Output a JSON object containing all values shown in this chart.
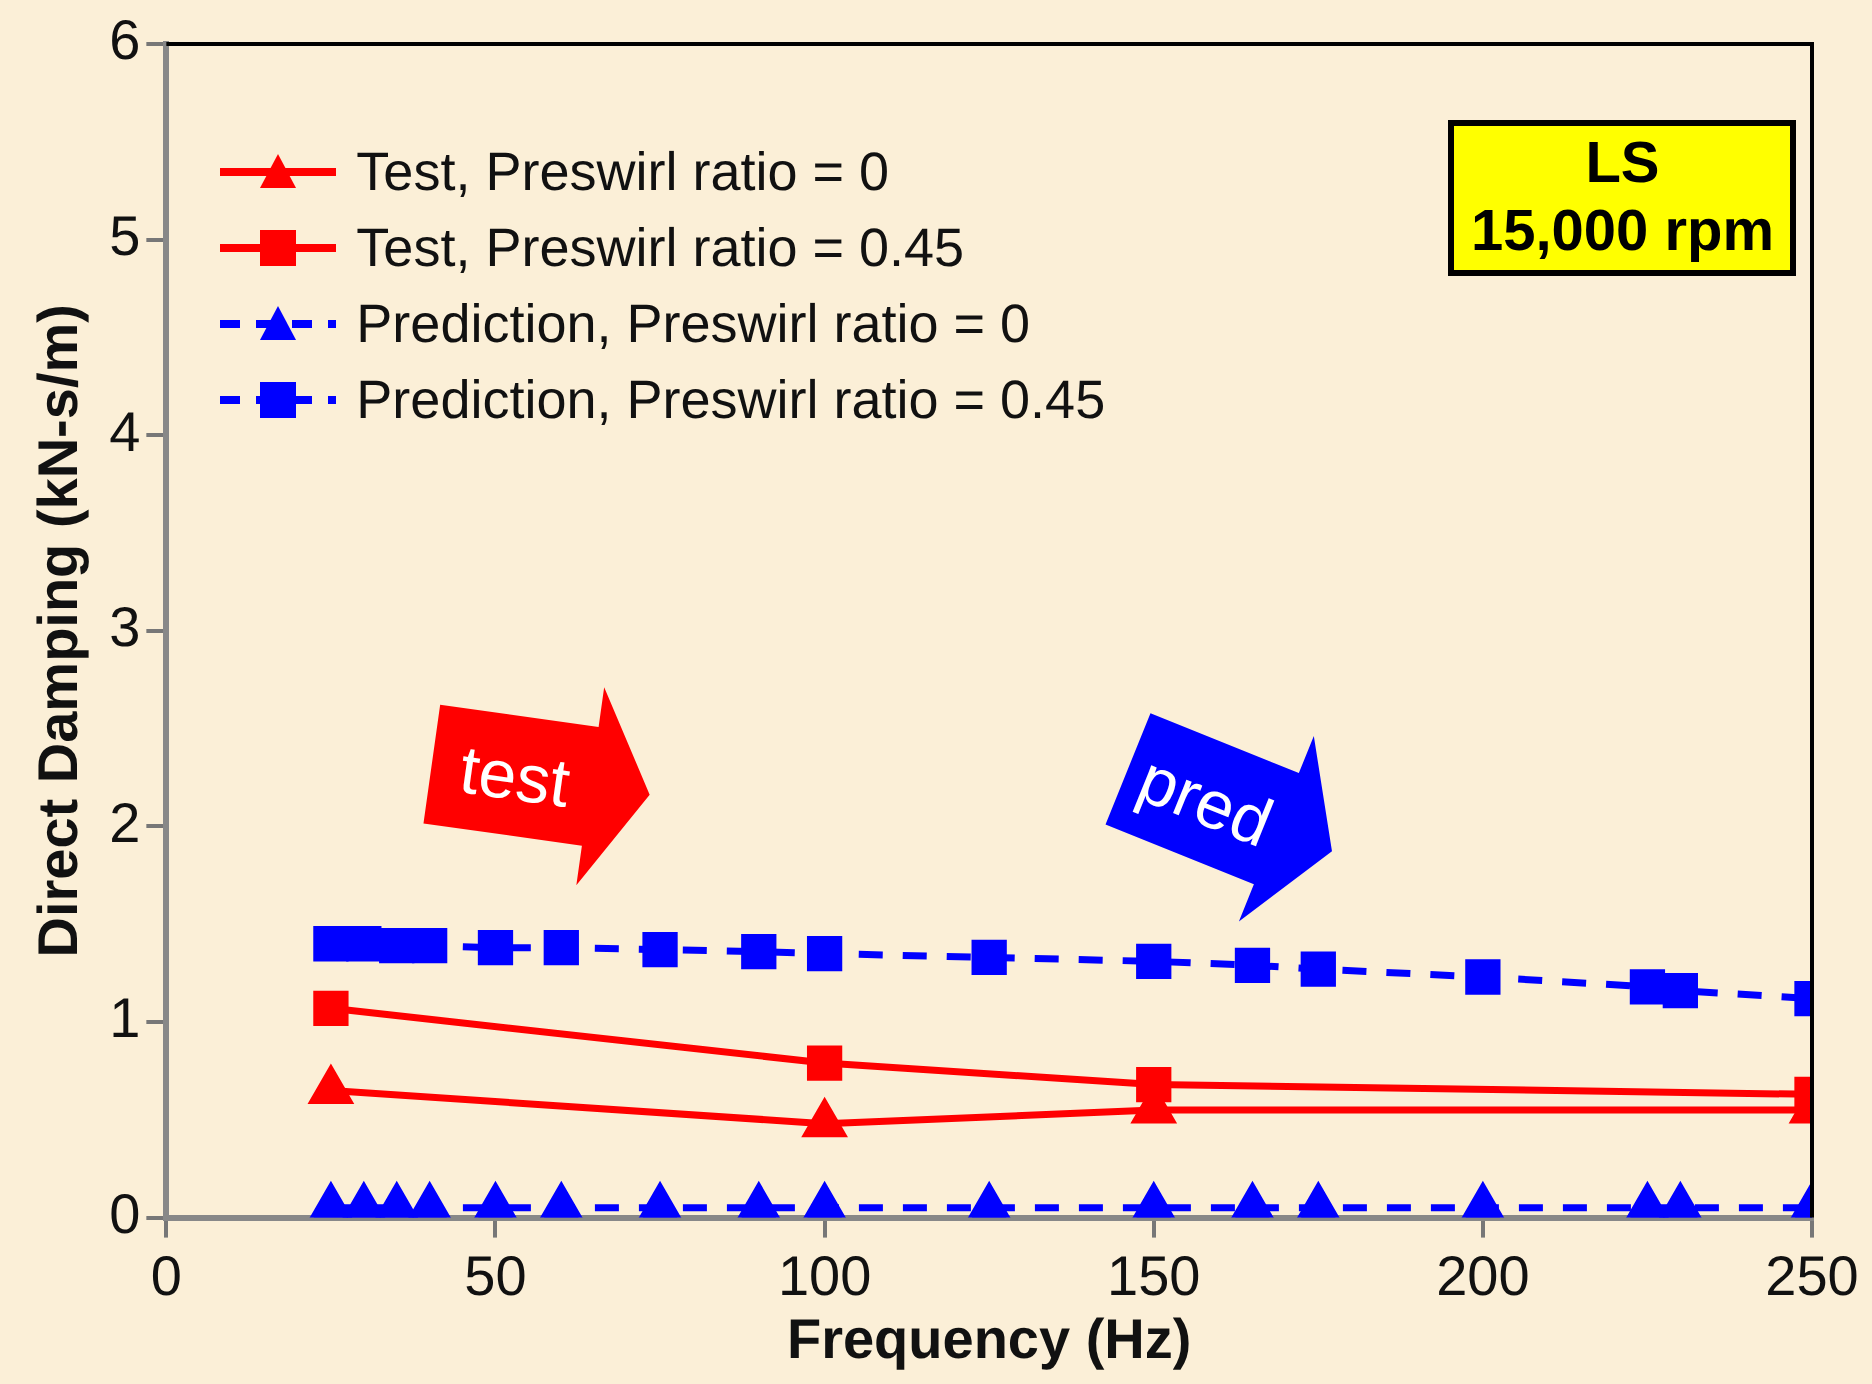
{
  "chart_data": {
    "type": "line",
    "xlabel": "Frequency (Hz)",
    "ylabel": "Direct Damping (kN-s/m)",
    "xlim": [
      0,
      250
    ],
    "xticks": [
      0,
      50,
      100,
      150,
      200,
      250
    ],
    "ylim": [
      0,
      6
    ],
    "yticks": [
      0,
      1,
      2,
      3,
      4,
      5,
      6
    ],
    "grid": false,
    "legend": "top left",
    "annotations": [
      "LS\n15,000 rpm",
      "test",
      "pred"
    ],
    "series": [
      {
        "name": "Test, Preswirl ratio = 0",
        "color": "#ff0000",
        "marker": "triangle",
        "line_style": "solid",
        "x": [
          25,
          100,
          150,
          250
        ],
        "values": [
          0.65,
          0.48,
          0.55,
          0.55
        ]
      },
      {
        "name": "Test, Preswirl ratio = 0.45",
        "color": "#ff0000",
        "marker": "square",
        "line_style": "solid",
        "x": [
          25,
          100,
          150,
          250
        ],
        "values": [
          1.07,
          0.79,
          0.68,
          0.63
        ]
      },
      {
        "name": "Prediction, Preswirl ratio = 0",
        "color": "#0000ff",
        "marker": "triangle",
        "line_style": "dashed",
        "x": [
          25,
          30,
          35,
          40,
          50,
          60,
          75,
          90,
          100,
          125,
          150,
          165,
          175,
          200,
          225,
          230,
          250
        ],
        "values": [
          0.05,
          0.05,
          0.05,
          0.05,
          0.05,
          0.05,
          0.05,
          0.05,
          0.05,
          0.05,
          0.05,
          0.05,
          0.05,
          0.05,
          0.05,
          0.05,
          0.05
        ]
      },
      {
        "name": "Prediction, Preswirl ratio = 0.45",
        "color": "#0000ff",
        "marker": "square",
        "line_style": "dashed",
        "x": [
          25,
          30,
          35,
          40,
          50,
          60,
          75,
          90,
          100,
          125,
          150,
          165,
          175,
          200,
          225,
          230,
          250
        ],
        "values": [
          1.4,
          1.4,
          1.39,
          1.39,
          1.38,
          1.38,
          1.37,
          1.36,
          1.35,
          1.33,
          1.31,
          1.29,
          1.27,
          1.23,
          1.18,
          1.16,
          1.12
        ]
      }
    ]
  }
}
